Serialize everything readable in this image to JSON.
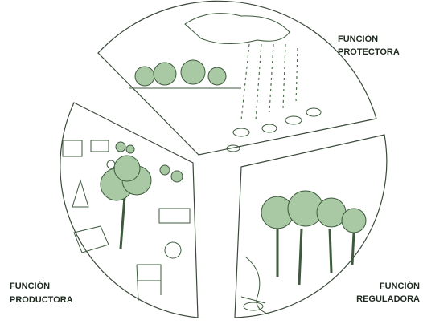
{
  "sections": [
    {
      "lines": [
        "FUNCIÓN",
        "PROTECTORA"
      ]
    },
    {
      "lines": [
        "FUNCIÓN",
        "PRODUCTORA"
      ]
    },
    {
      "lines": [
        "FUNCIÓN",
        "REGULADORA"
      ]
    }
  ]
}
